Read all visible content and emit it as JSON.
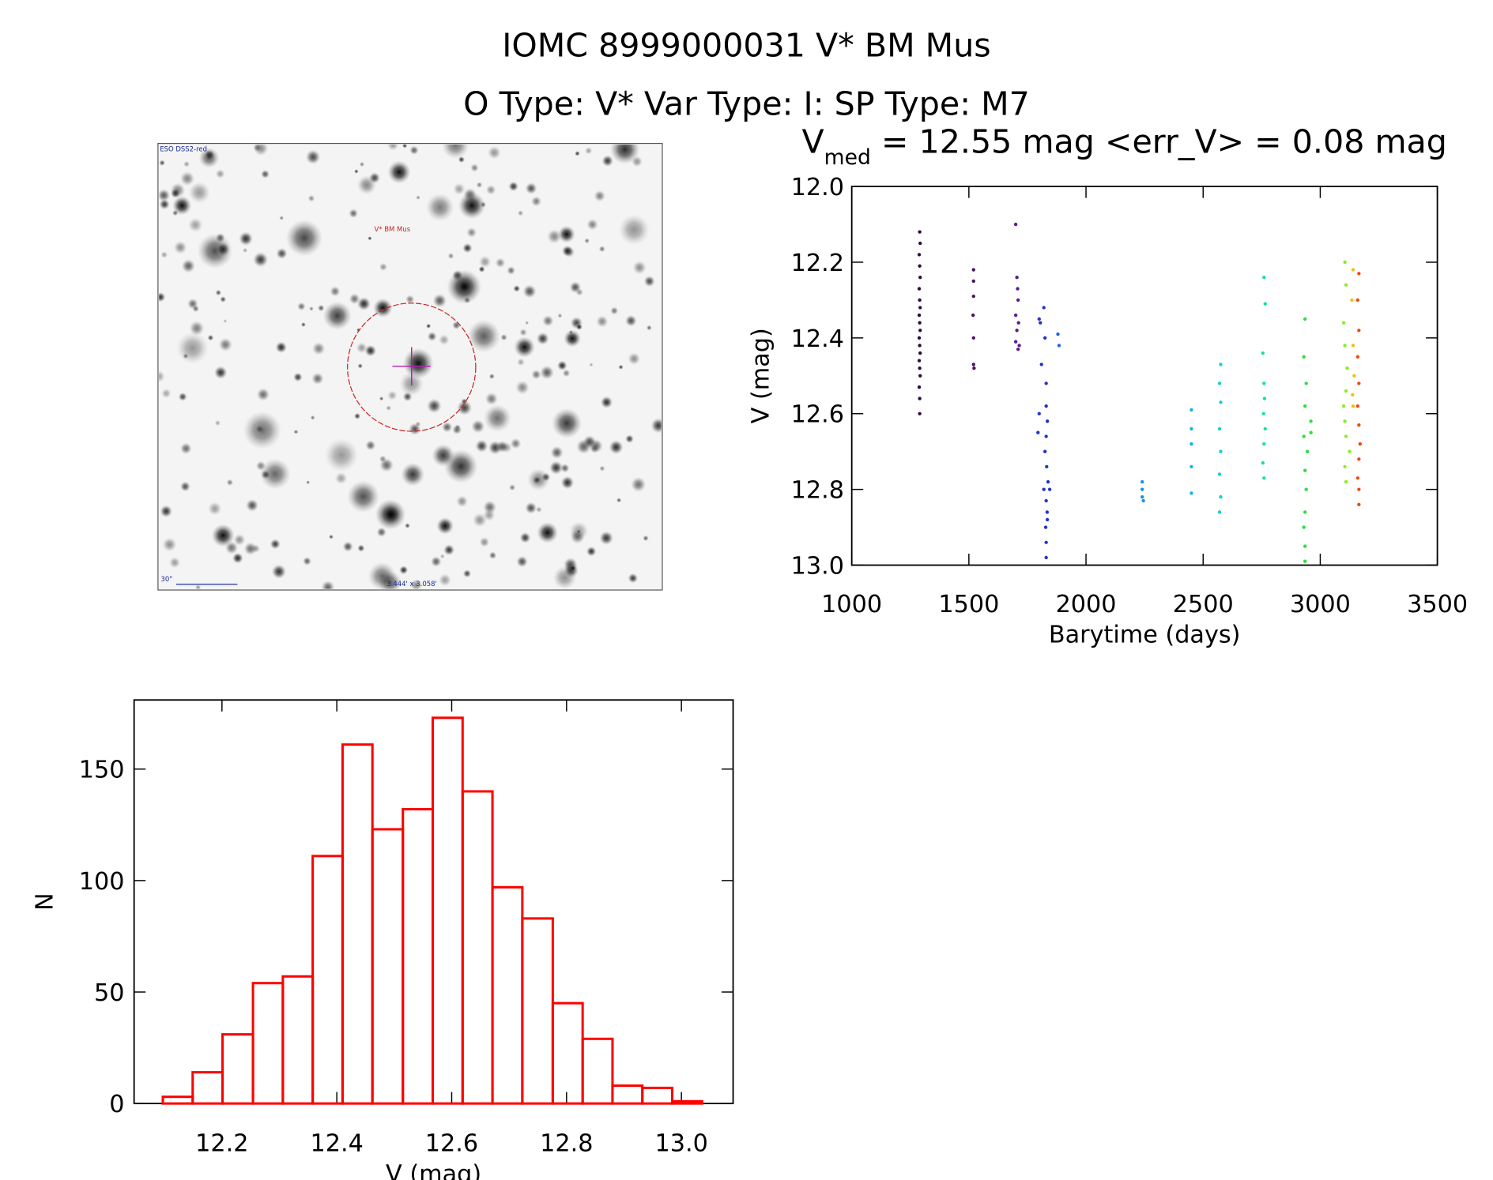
{
  "title": "IOMC 8999000031   V* BM Mus",
  "subtitle": "O Type: V*  Var Type: I:  SP Type: M7",
  "image": {
    "survey": "ESO DSS2-red",
    "target": "V* BM Mus",
    "scale": "30\"",
    "size": "3.444' x 3.058'"
  },
  "chart_data": [
    {
      "type": "scatter",
      "title_parts": [
        "V",
        "med",
        " = 12.55 mag <err_V> = 0.08 mag"
      ],
      "x_label": "Barytime (days)",
      "y_label": "V (mag)",
      "xlim": [
        1000,
        3500
      ],
      "xticks": [
        1000,
        1500,
        2000,
        2500,
        3000,
        3500
      ],
      "ylim": [
        12.0,
        13.0
      ],
      "y_inverted": true,
      "yticks": [
        {
          "value": 12.0,
          "label": "12.0"
        },
        12.2,
        12.4,
        12.6,
        12.8,
        {
          "value": 13.0,
          "label": "13.0"
        }
      ],
      "groups": [
        {
          "color": "#2b0b3d",
          "x": [
            1290,
            1292,
            1288,
            1290,
            1292,
            1288,
            1290,
            1292,
            1288,
            1290,
            1292,
            1288,
            1290,
            1292,
            1288,
            1290,
            1292,
            1288,
            1290,
            1290
          ],
          "y": [
            12.12,
            12.15,
            12.18,
            12.21,
            12.24,
            12.27,
            12.3,
            12.32,
            12.34,
            12.36,
            12.38,
            12.4,
            12.42,
            12.44,
            12.46,
            12.48,
            12.5,
            12.53,
            12.56,
            12.6
          ]
        },
        {
          "color": "#4a1462",
          "x": [
            1520,
            1520,
            1520,
            1518,
            1520,
            1520,
            1522
          ],
          "y": [
            12.22,
            12.25,
            12.29,
            12.34,
            12.4,
            12.47,
            12.48
          ]
        },
        {
          "color": "#5b1c8c",
          "x": [
            1700,
            1705,
            1708,
            1710,
            1700,
            1712,
            1705,
            1700,
            1715,
            1710
          ],
          "y": [
            12.1,
            12.24,
            12.27,
            12.3,
            12.34,
            12.36,
            12.38,
            12.41,
            12.42,
            12.43
          ]
        },
        {
          "color": "#2233cc",
          "x": [
            1800,
            1805,
            1820,
            1825,
            1810,
            1830,
            1830,
            1835,
            1830,
            1825,
            1832,
            1838,
            1820,
            1830,
            1834,
            1828,
            1845,
            1830,
            1830,
            1835,
            1800,
            1795
          ],
          "y": [
            12.35,
            12.36,
            12.32,
            12.4,
            12.47,
            12.52,
            12.58,
            12.62,
            12.66,
            12.7,
            12.74,
            12.78,
            12.8,
            12.83,
            12.86,
            12.9,
            12.8,
            12.94,
            12.98,
            12.88,
            12.6,
            12.65
          ]
        },
        {
          "color": "#2266e6",
          "x": [
            1880,
            1885
          ],
          "y": [
            12.39,
            12.42
          ]
        },
        {
          "color": "#1a92e2",
          "x": [
            2240,
            2240,
            2240,
            2245
          ],
          "y": [
            12.78,
            12.8,
            12.82,
            12.83
          ]
        },
        {
          "color": "#10b6e4",
          "x": [
            2450,
            2450,
            2450,
            2450,
            2450
          ],
          "y": [
            12.59,
            12.64,
            12.68,
            12.74,
            12.81
          ]
        },
        {
          "color": "#12d2d2",
          "x": [
            2575,
            2570,
            2575,
            2570,
            2575,
            2570,
            2575,
            2570
          ],
          "y": [
            12.47,
            12.52,
            12.57,
            12.64,
            12.7,
            12.76,
            12.82,
            12.86
          ]
        },
        {
          "color": "#16e296",
          "x": [
            2760,
            2765,
            2755,
            2760,
            2762,
            2758,
            2765,
            2760,
            2755,
            2760
          ],
          "y": [
            12.24,
            12.31,
            12.44,
            12.52,
            12.56,
            12.6,
            12.64,
            12.68,
            12.73,
            12.77
          ]
        },
        {
          "color": "#28e040",
          "x": [
            2935,
            2930,
            2940,
            2935,
            2960,
            2930,
            2945,
            2935,
            2940,
            2935,
            2930,
            2935,
            2960,
            2935
          ],
          "y": [
            12.35,
            12.45,
            12.52,
            12.58,
            12.62,
            12.66,
            12.7,
            12.75,
            12.8,
            12.86,
            12.9,
            12.95,
            12.65,
            12.99
          ]
        },
        {
          "color": "#88ee22",
          "x": [
            3105,
            3110,
            3100,
            3105,
            3115,
            3110,
            3100,
            3105,
            3110,
            3125,
            3105,
            3110
          ],
          "y": [
            12.2,
            12.26,
            12.36,
            12.42,
            12.48,
            12.54,
            12.58,
            12.62,
            12.66,
            12.7,
            12.74,
            12.78
          ]
        },
        {
          "color": "#f0c010",
          "x": [
            3140,
            3135,
            3140,
            3145,
            3138,
            3140
          ],
          "y": [
            12.22,
            12.3,
            12.42,
            12.5,
            12.55,
            12.58
          ]
        },
        {
          "color": "#f04a12",
          "x": [
            3165,
            3160,
            3165,
            3160,
            3165,
            3160,
            3165,
            3170,
            3165,
            3160,
            3165,
            3165
          ],
          "y": [
            12.23,
            12.3,
            12.38,
            12.45,
            12.52,
            12.58,
            12.63,
            12.68,
            12.72,
            12.77,
            12.8,
            12.84
          ]
        }
      ]
    },
    {
      "type": "histogram",
      "color": "#ff0000",
      "x_label": "V (mag)",
      "y_label": "N",
      "bins": [
        12.097,
        12.149,
        12.201,
        12.254,
        12.306,
        12.358,
        12.41,
        12.462,
        12.515,
        12.567,
        12.619,
        12.671,
        12.723,
        12.776,
        12.828,
        12.88,
        12.932,
        12.984,
        13.036
      ],
      "counts": [
        3,
        14,
        31,
        54,
        57,
        111,
        161,
        123,
        132,
        173,
        140,
        97,
        83,
        45,
        29,
        8,
        7,
        1
      ],
      "xlim": [
        12.047,
        13.09
      ],
      "xticks": [
        12.2,
        12.4,
        12.6,
        12.8,
        {
          "value": 13.0,
          "label": "13.0"
        }
      ],
      "ylim": [
        0,
        181
      ],
      "yticks": [
        0,
        50,
        100,
        150
      ]
    }
  ]
}
